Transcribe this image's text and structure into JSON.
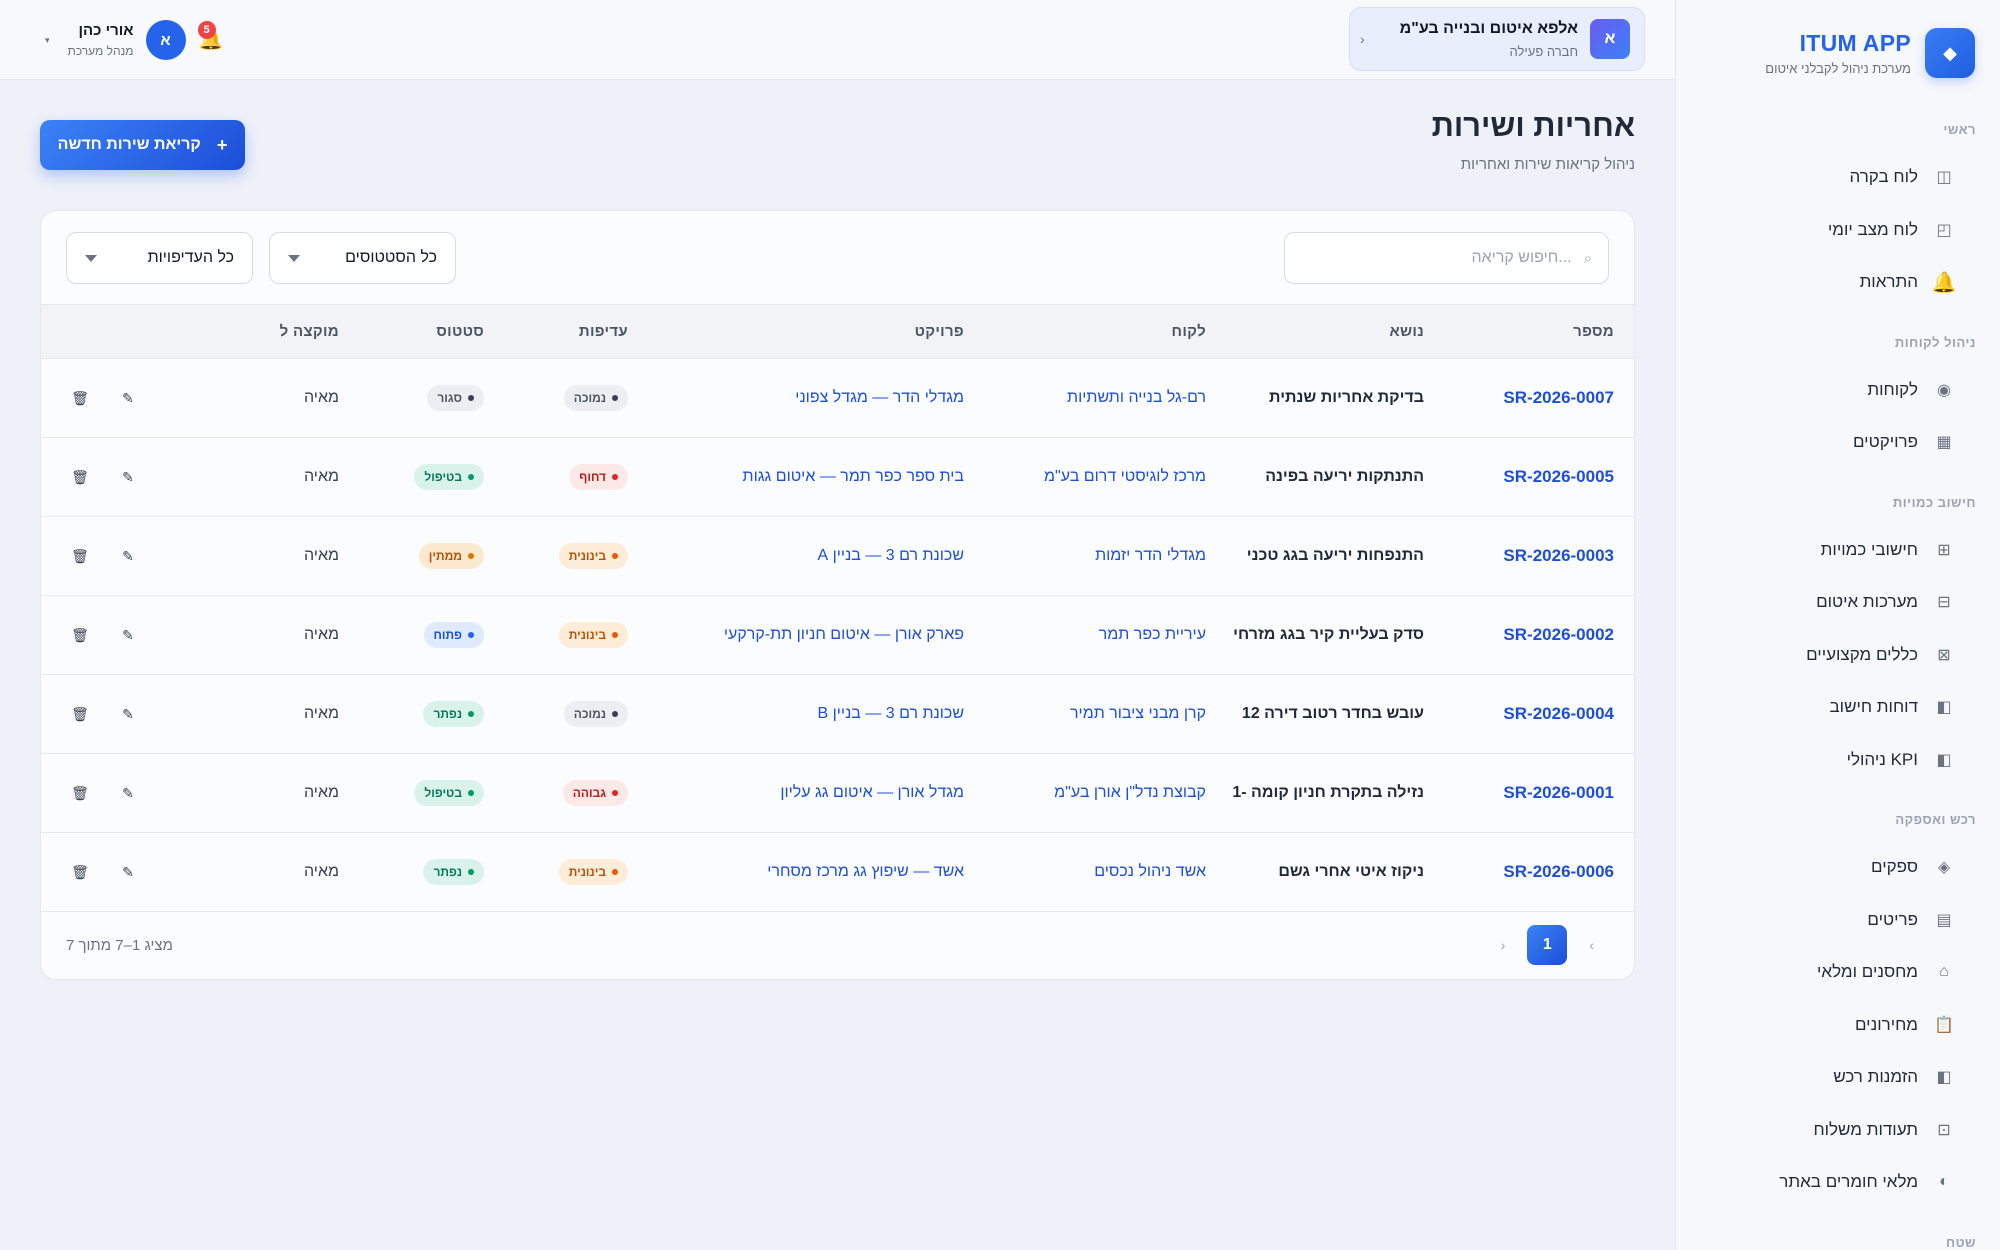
{
  "brand": {
    "title": "ITUM APP",
    "subtitle": "מערכת ניהול לקבלני איטום",
    "logo_icon": "diamond-icon"
  },
  "sidebar": {
    "sections": [
      {
        "heading": "ראשי",
        "items": [
          {
            "label": "לוח בקרה",
            "icon": "layout-icon",
            "glyph": "◫"
          },
          {
            "label": "לוח מצב יומי",
            "icon": "clipboard-icon",
            "glyph": "◰"
          },
          {
            "label": "התראות",
            "icon": "bell-icon",
            "glyph": "🔔"
          }
        ]
      },
      {
        "heading": "ניהול לקוחות",
        "items": [
          {
            "label": "לקוחות",
            "icon": "users-icon",
            "glyph": "◉"
          },
          {
            "label": "פרויקטים",
            "icon": "grid-icon",
            "glyph": "▦"
          }
        ]
      },
      {
        "heading": "חישוב כמויות",
        "items": [
          {
            "label": "חישובי כמויות",
            "icon": "calculator-icon",
            "glyph": "⊞"
          },
          {
            "label": "מערכות איטום",
            "icon": "layers-icon",
            "glyph": "⊟"
          },
          {
            "label": "כללים מקצועיים",
            "icon": "rules-icon",
            "glyph": "⊠"
          },
          {
            "label": "דוחות חישוב",
            "icon": "report-icon",
            "glyph": "◧"
          },
          {
            "label": "KPI ניהולי",
            "icon": "kpi-icon",
            "glyph": "◧"
          }
        ]
      },
      {
        "heading": "רכש ואספקה",
        "items": [
          {
            "label": "ספקים",
            "icon": "supplier-icon",
            "glyph": "◈"
          },
          {
            "label": "פריטים",
            "icon": "list-icon",
            "glyph": "▤"
          },
          {
            "label": "מחסנים ומלאי",
            "icon": "warehouse-icon",
            "glyph": "⌂"
          },
          {
            "label": "מחירונים",
            "icon": "pricelist-icon",
            "glyph": "📋"
          },
          {
            "label": "הזמנות רכש",
            "icon": "purchase-icon",
            "glyph": "◧"
          },
          {
            "label": "תעודות משלוח",
            "icon": "delivery-icon",
            "glyph": "⊡"
          },
          {
            "label": "מלאי חומרים באתר",
            "icon": "site-stock-icon",
            "glyph": "◐"
          }
        ]
      },
      {
        "heading": "שטח",
        "items": []
      }
    ]
  },
  "topbar": {
    "company": {
      "avatar": "א",
      "name": "אלפא איטום ובנייה בע\"מ",
      "status": "חברה פעילה",
      "chevron": "‹"
    },
    "notifications_count": "5",
    "user": {
      "avatar": "א",
      "name": "אורי כהן",
      "role": "מנהל מערכת",
      "caret": "▾"
    }
  },
  "page": {
    "title": "אחריות ושירות",
    "subtitle": "ניהול קריאות שירות ואחריות",
    "new_button": "קריאת שירות חדשה",
    "new_button_plus": "+"
  },
  "filters": {
    "search_placeholder": "...חיפוש קריאה",
    "status_select": "כל הסטטוסים",
    "priority_select": "כל העדיפויות"
  },
  "table": {
    "headers": {
      "number": "מספר",
      "topic": "נושא",
      "client": "לקוח",
      "project": "פרויקט",
      "priority": "עדיפות",
      "status": "סטטוס",
      "assignee": "מוקצה ל"
    },
    "rows": [
      {
        "number": "SR-2026-0007",
        "topic": "בדיקת אחריות שנתית",
        "client": "רם-גל בנייה ותשתיות",
        "project": "מגדלי הדר — מגדל צפוני",
        "priority": "נמוכה",
        "priority_style": "b-gray",
        "status": "סגור",
        "status_style": "b-gray",
        "assignee": "מאיה"
      },
      {
        "number": "SR-2026-0005",
        "topic": "התנתקות יריעה בפינה",
        "client": "מרכז לוגיסטי דרום בע\"מ",
        "project": "בית ספר כפר תמר — איטום גגות",
        "priority": "דחוף",
        "priority_style": "b-red",
        "status": "בטיפול",
        "status_style": "b-green",
        "assignee": "מאיה"
      },
      {
        "number": "SR-2026-0003",
        "topic": "התנפחות יריעה בגג טכני",
        "client": "מגדלי הדר יזמות",
        "project": "שכונת רם 3 — בניין A",
        "priority": "בינונית",
        "priority_style": "b-orange",
        "status": "ממתין",
        "status_style": "b-amber",
        "assignee": "מאיה"
      },
      {
        "number": "SR-2026-0002",
        "topic": "סדק בעליית קיר בגג מזרחי",
        "client": "עיריית כפר תמר",
        "project": "פארק אורן — איטום חניון תת-קרקעי",
        "priority": "בינונית",
        "priority_style": "b-orange",
        "status": "פתוח",
        "status_style": "b-blue",
        "assignee": "מאיה"
      },
      {
        "number": "SR-2026-0004",
        "topic": "עובש בחדר רטוב דירה 12",
        "client": "קרן מבני ציבור תמיר",
        "project": "שכונת רם 3 — בניין B",
        "priority": "נמוכה",
        "priority_style": "b-gray",
        "status": "נפתר",
        "status_style": "b-green",
        "assignee": "מאיה"
      },
      {
        "number": "SR-2026-0001",
        "topic": "נזילה בתקרת חניון קומה -1",
        "client": "קבוצת נדל\"ן אורן בע\"מ",
        "project": "מגדל אורן — איטום גג עליון",
        "priority": "גבוהה",
        "priority_style": "b-red",
        "status": "בטיפול",
        "status_style": "b-green",
        "assignee": "מאיה"
      },
      {
        "number": "SR-2026-0006",
        "topic": "ניקוז איטי אחרי גשם",
        "client": "אשד ניהול נכסים",
        "project": "אשד — שיפוץ גג מרכז מסחרי",
        "priority": "בינונית",
        "priority_style": "b-orange",
        "status": "נפתר",
        "status_style": "b-green",
        "assignee": "מאיה"
      }
    ]
  },
  "pagination": {
    "current_page": "1",
    "prev": "›",
    "next": "‹",
    "summary": "מציג 1–7 מתוך 7"
  },
  "colors": {
    "accent": "#2563eb",
    "sidebar_bg": "#f6f8fc",
    "page_bg": "#eef1f8"
  }
}
